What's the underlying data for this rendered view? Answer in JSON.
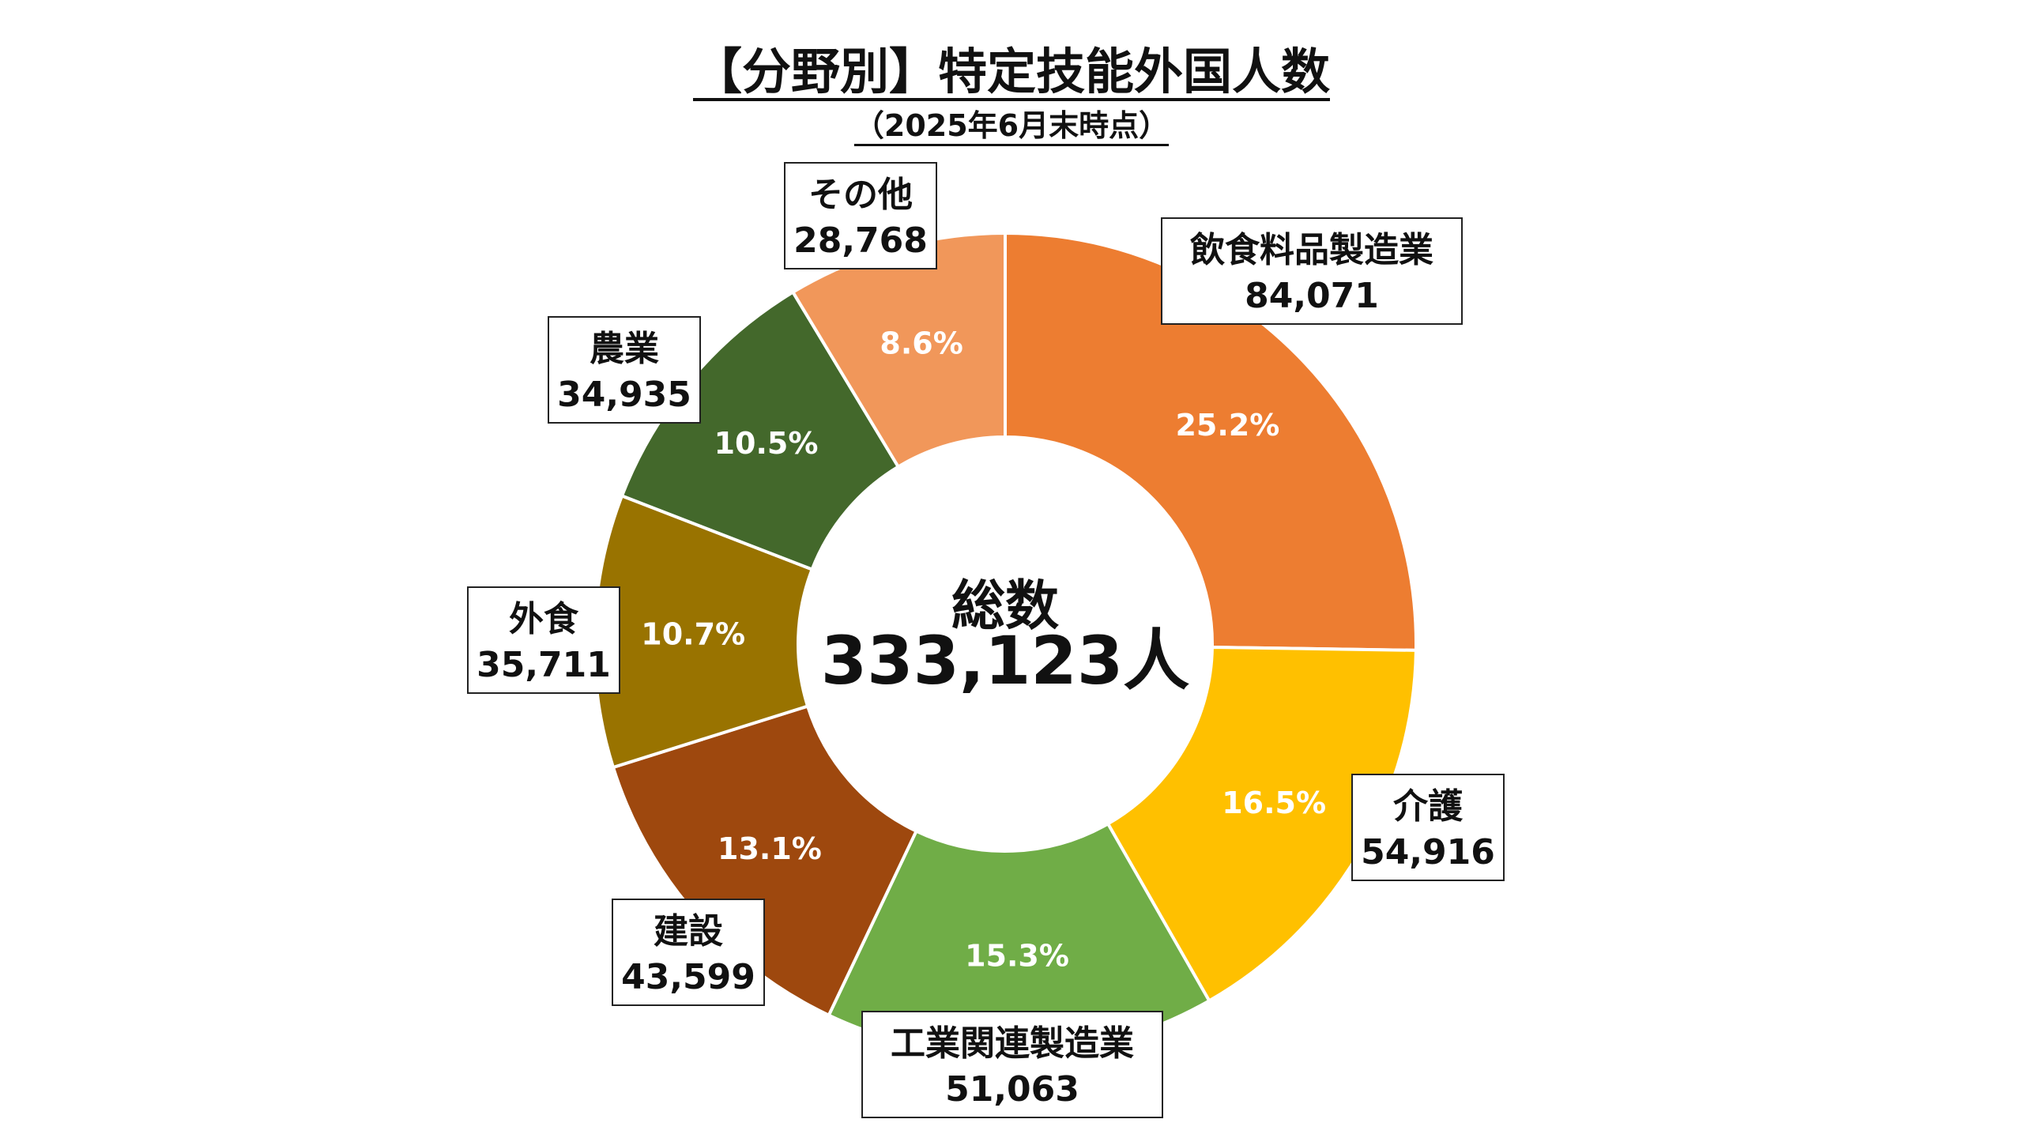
{
  "chart_data": {
    "type": "pie",
    "title": "【分野別】特定技能外国人数",
    "subtitle": "（2025年6月末時点）",
    "center_label": "総数",
    "center_value": "333,123人",
    "slices": [
      {
        "label": "飲食料品製造業",
        "value_text": "84,071",
        "value": 84071,
        "percent_text": "25.2%",
        "color": "#ED7D31"
      },
      {
        "label": "介護",
        "value_text": "54,916",
        "value": 54916,
        "percent_text": "16.5%",
        "color": "#FFC000"
      },
      {
        "label": "工業関連製造業",
        "value_text": "51,063",
        "value": 51063,
        "percent_text": "15.3%",
        "color": "#70AD47"
      },
      {
        "label": "建設",
        "value_text": "43,599",
        "value": 43599,
        "percent_text": "13.1%",
        "color": "#9E480E"
      },
      {
        "label": "外食",
        "value_text": "35,711",
        "value": 35711,
        "percent_text": "10.7%",
        "color": "#997300"
      },
      {
        "label": "農業",
        "value_text": "34,935",
        "value": 34935,
        "percent_text": "10.5%",
        "color": "#43682B"
      },
      {
        "label": "その他",
        "value_text": "28,768",
        "value": 28768,
        "percent_text": "8.6%",
        "color": "#F1975A"
      }
    ]
  }
}
